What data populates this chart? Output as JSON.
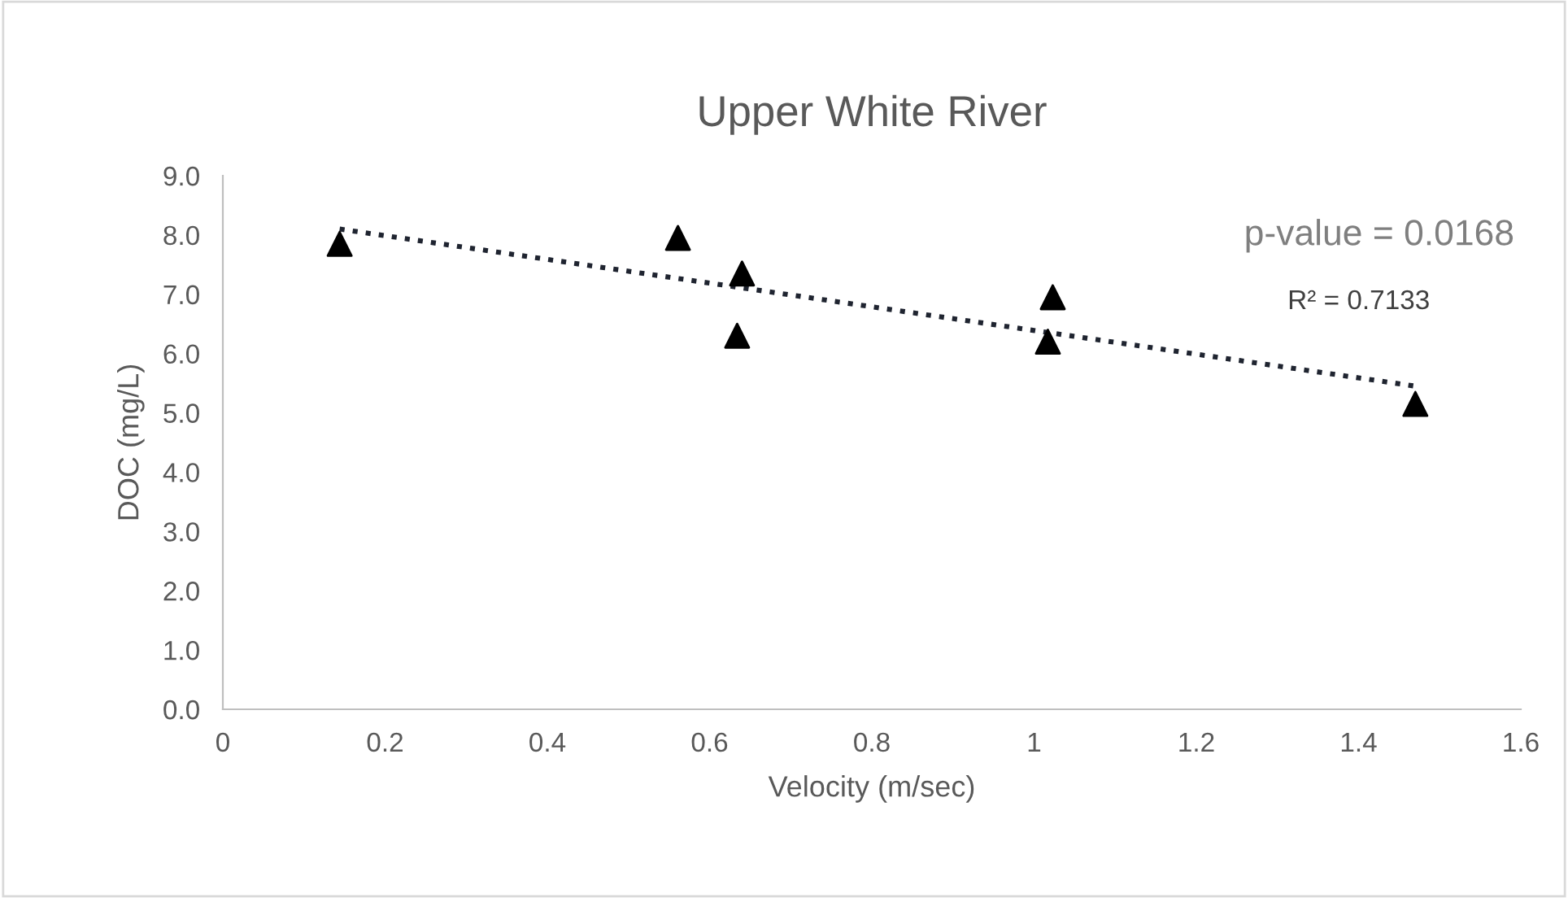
{
  "chart_data": {
    "type": "scatter",
    "title": "Upper White River",
    "xlabel": "Velocity (m/sec)",
    "ylabel": "DOC (mg/L)",
    "series": [
      {
        "color": "#000000",
        "marker": "triangle",
        "x": [
          0.144,
          0.561,
          0.64,
          0.634,
          1.023,
          1.017,
          1.47
        ],
        "values": [
          7.85,
          7.95,
          7.35,
          6.3,
          6.95,
          6.2,
          5.15
        ]
      },
      {
        "type": "line",
        "color": "#1f2430",
        "line_style": "dotted",
        "marker": "none",
        "x": [
          0.144,
          1.47
        ],
        "values": [
          8.1,
          5.45
        ]
      }
    ],
    "xlim": [
      0,
      1.6
    ],
    "xticks": [
      0,
      0.2,
      0.4,
      0.6,
      0.8,
      1,
      1.2,
      1.4,
      1.6
    ],
    "ylim": [
      0,
      9
    ],
    "yticks": [
      {
        "value": 0,
        "label": "0.0"
      },
      {
        "value": 1,
        "label": "1.0"
      },
      {
        "value": 2,
        "label": "2.0"
      },
      {
        "value": 3,
        "label": "3.0"
      },
      {
        "value": 4,
        "label": "4.0"
      },
      {
        "value": 5,
        "label": "5.0"
      },
      {
        "value": 6,
        "label": "6.0"
      },
      {
        "value": 7,
        "label": "7.0"
      },
      {
        "value": 8,
        "label": "8.0"
      },
      {
        "value": 9,
        "label": "9.0"
      }
    ],
    "grid": false,
    "legend": false,
    "annotations": [
      "p-value = 0.0168",
      "R² = 0.7133"
    ]
  }
}
